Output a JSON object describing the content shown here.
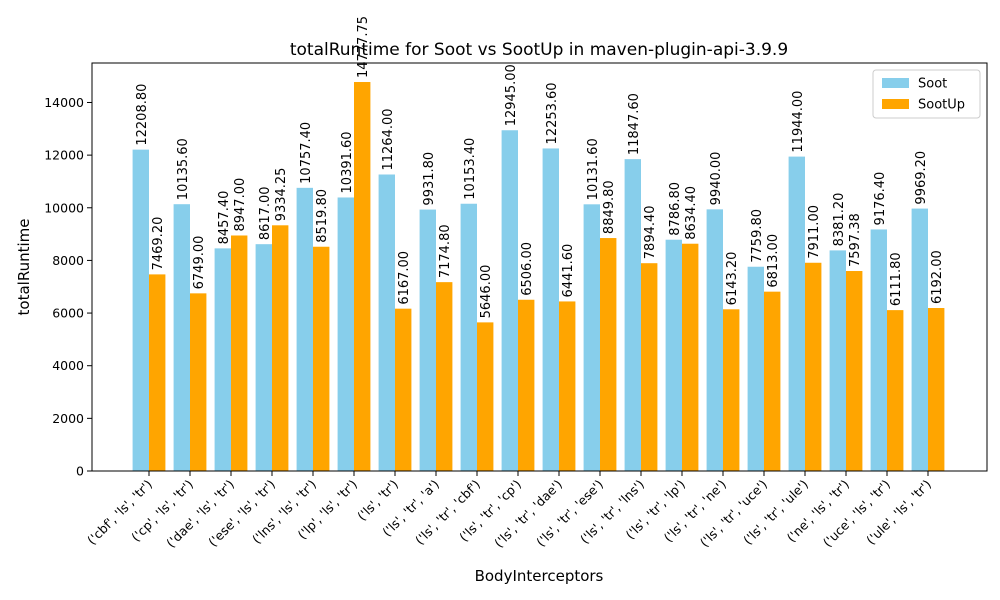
{
  "chart_data": {
    "type": "bar",
    "title": "totalRuntime for Soot vs SootUp in maven-plugin-api-3.9.9",
    "xlabel": "BodyInterceptors",
    "ylabel": "totalRuntime",
    "ylim": [
      0,
      15500
    ],
    "yticks": [
      0,
      2000,
      4000,
      6000,
      8000,
      10000,
      12000,
      14000
    ],
    "grid": false,
    "legend_position": "top-right",
    "categories": [
      "('cbf', 'ls', 'tr')",
      "('cp', 'ls', 'tr')",
      "('dae', 'ls', 'tr')",
      "('ese', 'ls', 'tr')",
      "('lns', 'ls', 'tr')",
      "('lp', 'ls', 'tr')",
      "('ls', 'tr')",
      "('ls', 'tr', 'a')",
      "('ls', 'tr', 'cbf')",
      "('ls', 'tr', 'cp')",
      "('ls', 'tr', 'dae')",
      "('ls', 'tr', 'ese')",
      "('ls', 'tr', 'lns')",
      "('ls', 'tr', 'lp')",
      "('ls', 'tr', 'ne')",
      "('ls', 'tr', 'uce')",
      "('ls', 'tr', 'ule')",
      "('ne', 'ls', 'tr')",
      "('uce', 'ls', 'tr')",
      "('ule', 'ls', 'tr')"
    ],
    "series": [
      {
        "name": "Soot",
        "color": "#87ceeb",
        "values": [
          12208.8,
          10135.6,
          8457.4,
          8617.0,
          10757.4,
          10391.6,
          11264.0,
          9931.8,
          10153.4,
          12945.0,
          12253.6,
          10131.6,
          11847.6,
          8786.8,
          9940.0,
          7759.8,
          11944.0,
          8381.2,
          9176.4,
          9969.2
        ],
        "labels": [
          "12208.80",
          "10135.60",
          "8457.40",
          "8617.00",
          "10757.40",
          "10391.60",
          "11264.00",
          "9931.80",
          "10153.40",
          "12945.00",
          "12253.60",
          "10131.60",
          "11847.60",
          "8786.80",
          "9940.00",
          "7759.80",
          "11944.00",
          "8381.20",
          "9176.40",
          "9969.20"
        ]
      },
      {
        "name": "SootUp",
        "color": "#ffa500",
        "values": [
          7469.2,
          6749.0,
          8947.0,
          9334.25,
          8519.8,
          14777.75,
          6167.0,
          7174.8,
          5646.0,
          6506.0,
          6441.6,
          8849.8,
          7894.4,
          8634.4,
          6143.2,
          6813.0,
          7911.0,
          7597.38,
          6111.8,
          6192.0
        ],
        "labels": [
          "7469.20",
          "6749.00",
          "8947.00",
          "9334.25",
          "8519.80",
          "14777.75",
          "6167.00",
          "7174.80",
          "5646.00",
          "6506.00",
          "6441.60",
          "8849.80",
          "7894.40",
          "8634.40",
          "6143.20",
          "6813.00",
          "7911.00",
          "7597.38",
          "6111.80",
          "6192.00"
        ]
      }
    ]
  }
}
